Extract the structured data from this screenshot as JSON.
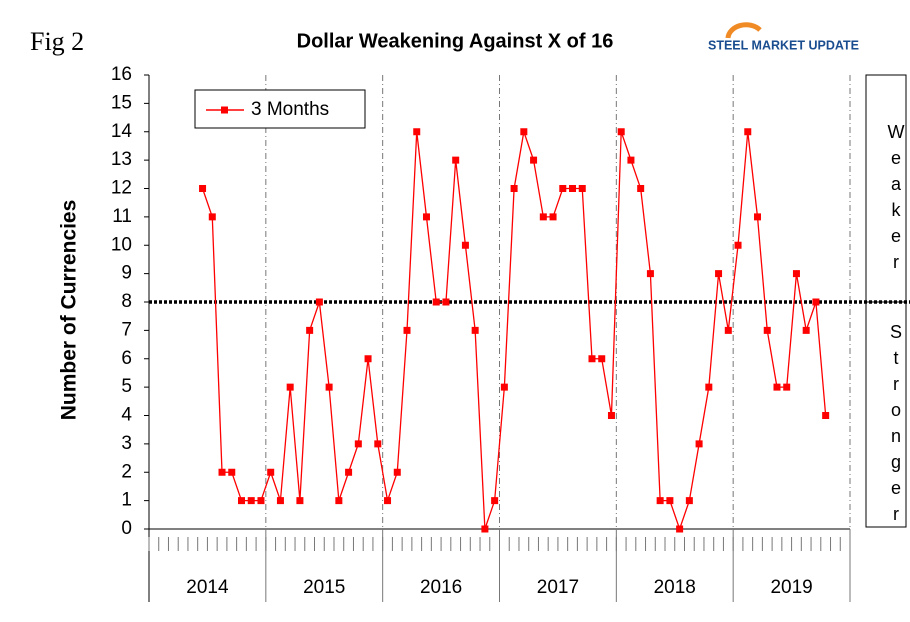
{
  "fig_label": "Fig 2",
  "logo": "STEEL MARKET UPDATE",
  "chart_data": {
    "type": "line",
    "title": "Dollar Weakening Against X of 16",
    "y_label": "Number of Currencies",
    "groups": [
      "2014",
      "2015",
      "2016",
      "2017",
      "2018",
      "2019"
    ],
    "categories": [
      null,
      null,
      null,
      null,
      null,
      null,
      null,
      null,
      null,
      null,
      null,
      null,
      null,
      null,
      null,
      null,
      null,
      null,
      null,
      null,
      null,
      null,
      null,
      null,
      null,
      null,
      null,
      null,
      null,
      null,
      null,
      null,
      null,
      null,
      null,
      null,
      null,
      null,
      null,
      null,
      null,
      null,
      null,
      null,
      null,
      null,
      null,
      null,
      null,
      null,
      null,
      null,
      null,
      null,
      null,
      null,
      null,
      null,
      null,
      null,
      null,
      null,
      null,
      null,
      null,
      null,
      null,
      null,
      null,
      null,
      null,
      null
    ],
    "series": [
      {
        "name": "3 Months",
        "color": "#ff0000",
        "values": [
          null,
          null,
          null,
          null,
          null,
          12,
          11,
          2,
          2,
          1,
          1,
          1,
          2,
          1,
          5,
          1,
          7,
          8,
          5,
          1,
          2,
          3,
          6,
          3,
          1,
          2,
          7,
          14,
          11,
          8,
          8,
          13,
          10,
          7,
          0,
          1,
          5,
          12,
          14,
          13,
          11,
          11,
          12,
          12,
          12,
          6,
          6,
          4,
          14,
          13,
          12,
          9,
          1,
          1,
          0,
          1,
          3,
          5,
          9,
          7,
          10,
          14,
          11,
          7,
          5,
          5,
          9,
          7,
          8,
          4,
          null,
          null
        ]
      }
    ],
    "reference_line": 8,
    "ylim": [
      0,
      16
    ],
    "yticks": [
      0,
      1,
      2,
      3,
      4,
      5,
      6,
      7,
      8,
      9,
      10,
      11,
      12,
      13,
      14,
      15,
      16
    ],
    "legend": "top-left",
    "side_labels": {
      "upper": "Weaker",
      "lower": "Stronger"
    }
  }
}
